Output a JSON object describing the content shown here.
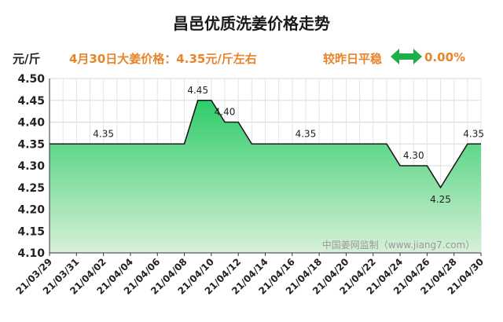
{
  "header": {
    "title": "昌邑优质洗姜价格走势",
    "unit": "元/斤",
    "price_text": "4月30日大姜价格：4.35元/斤左右",
    "compare_text": "较昨日平稳",
    "change_text": "0.00%"
  },
  "colors": {
    "accent": "#e8842a",
    "arrow": "#1fae4a",
    "fill_top": "#2ecc6a",
    "fill_bottom": "#d8f0d8",
    "line": "#1a1a1a"
  },
  "watermark": "中国姜网监制（www.jiang7.com）",
  "chart_data": {
    "type": "area",
    "title": "昌邑优质洗姜价格走势",
    "ylabel": "元/斤",
    "ylim": [
      4.1,
      4.5
    ],
    "yticks": [
      "4.10",
      "4.15",
      "4.20",
      "4.25",
      "4.30",
      "4.35",
      "4.40",
      "4.45",
      "4.50"
    ],
    "x": [
      "21/03/29",
      "21/03/30",
      "21/03/31",
      "21/04/01",
      "21/04/02",
      "21/04/03",
      "21/04/04",
      "21/04/05",
      "21/04/06",
      "21/04/07",
      "21/04/08",
      "21/04/09",
      "21/04/10",
      "21/04/11",
      "21/04/12",
      "21/04/13",
      "21/04/14",
      "21/04/15",
      "21/04/16",
      "21/04/17",
      "21/04/18",
      "21/04/19",
      "21/04/20",
      "21/04/21",
      "21/04/22",
      "21/04/23",
      "21/04/24",
      "21/04/25",
      "21/04/26",
      "21/04/27",
      "21/04/28",
      "21/04/29",
      "21/04/30"
    ],
    "xticks": [
      "21/03/29",
      "21/03/31",
      "21/04/02",
      "21/04/04",
      "21/04/06",
      "21/04/08",
      "21/04/10",
      "21/04/12",
      "21/04/14",
      "21/04/16",
      "21/04/18",
      "21/04/20",
      "21/04/22",
      "21/04/24",
      "21/04/26",
      "21/04/28",
      "21/04/30"
    ],
    "values": [
      4.35,
      4.35,
      4.35,
      4.35,
      4.35,
      4.35,
      4.35,
      4.35,
      4.35,
      4.35,
      4.35,
      4.45,
      4.45,
      4.4,
      4.4,
      4.35,
      4.35,
      4.35,
      4.35,
      4.35,
      4.35,
      4.35,
      4.35,
      4.35,
      4.35,
      4.35,
      4.3,
      4.3,
      4.3,
      4.25,
      4.3,
      4.35,
      4.35
    ],
    "data_labels": [
      {
        "index": 4,
        "text": "4.35"
      },
      {
        "index": 11,
        "text": "4.45"
      },
      {
        "index": 13,
        "text": "4.40"
      },
      {
        "index": 19,
        "text": "4.35"
      },
      {
        "index": 27,
        "text": "4.30"
      },
      {
        "index": 29,
        "text": "4.25"
      },
      {
        "index": 32,
        "text": "4.35"
      }
    ],
    "grid": true
  }
}
